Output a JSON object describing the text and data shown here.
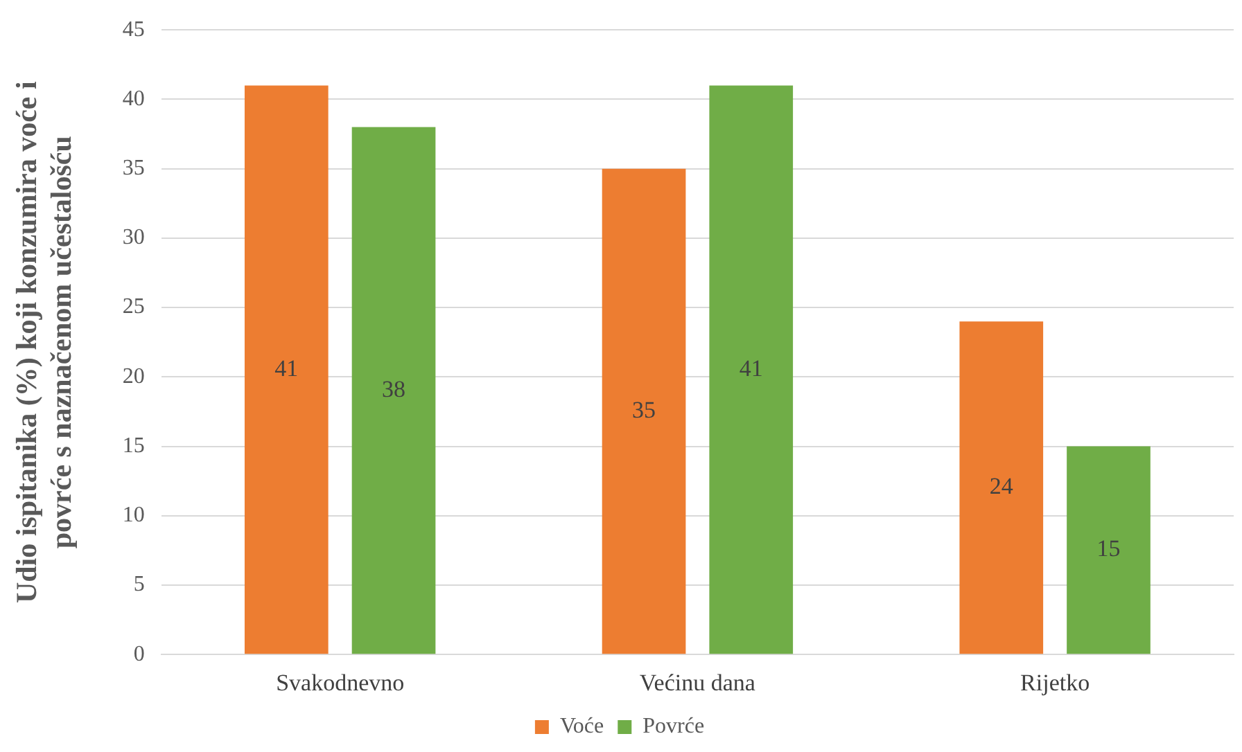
{
  "chart_data": {
    "type": "bar",
    "ylabel": "Udio ispitanika (%) koji konzumira voće i povrće s naznačenom učestalošću",
    "categories": [
      "Svakodnevno",
      "Većinu dana",
      "Rijetko"
    ],
    "series": [
      {
        "name": "Voće",
        "color": "#ed7d31",
        "values": [
          41,
          35,
          24
        ]
      },
      {
        "name": "Povrće",
        "color": "#70ad47",
        "values": [
          38,
          41,
          15
        ]
      }
    ],
    "ylim": [
      0,
      45
    ],
    "yticks": [
      0,
      5,
      10,
      15,
      20,
      25,
      30,
      35,
      40,
      45
    ],
    "grid": "y",
    "legend": "bottom",
    "data_labels": true
  }
}
